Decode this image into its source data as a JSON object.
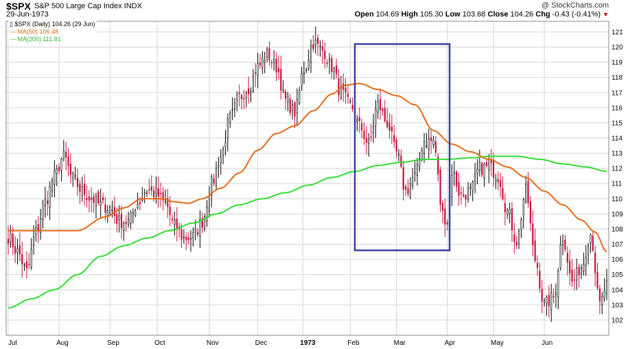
{
  "header": {
    "symbol": "$SPX",
    "name": "S&P 500 Large Cap Index  INDX",
    "date": "29-Jun-1973",
    "brand": "@ StockCharts.com",
    "open_label": "Open",
    "open": "104.69",
    "high_label": "High",
    "high": "105.30",
    "low_label": "Low",
    "low": "103.68",
    "close_label": "Close",
    "close": "104.26",
    "chg_label": "Chg",
    "chg": "-0.43 (-0.41%)",
    "down_glyph": "▼"
  },
  "legend": {
    "price": "$SPX (Daily) 104.26 (29 Jun)",
    "ma50": "MA(50) 106.48",
    "ma200": "MA(200) 111.81"
  },
  "colors": {
    "up": "#000000",
    "down": "#c8103c",
    "ma50": "#e46a16",
    "ma200": "#30dd30",
    "grid": "#d4d4d4",
    "box": "#3a3fa0"
  },
  "chart_data": {
    "type": "candlestick",
    "y_axis": {
      "side": "right",
      "range": [
        101,
        121.7
      ],
      "ticks": [
        102,
        103,
        104,
        105,
        106,
        107,
        108,
        109,
        110,
        111,
        112,
        113,
        114,
        115,
        116,
        117,
        118,
        119,
        120,
        121
      ]
    },
    "x_tick_labels": [
      "Jul",
      "Aug",
      "Sep",
      "Oct",
      "Nov",
      "Dec",
      "1973",
      "Feb",
      "Mar",
      "Apr",
      "May",
      "Jun"
    ],
    "x_tick_bold": [
      false,
      false,
      false,
      false,
      false,
      false,
      true,
      false,
      false,
      false,
      false,
      false
    ],
    "x_tick_pos": [
      0,
      22,
      44,
      64.5,
      87,
      108,
      127.5,
      148,
      168,
      190,
      210,
      232
    ],
    "close_anchors": [
      [
        0,
        107.5
      ],
      [
        4,
        106.5
      ],
      [
        8,
        105.2
      ],
      [
        12,
        107.8
      ],
      [
        16,
        109.8
      ],
      [
        20,
        111.5
      ],
      [
        24,
        112.8
      ],
      [
        28,
        111.3
      ],
      [
        32,
        110.5
      ],
      [
        36,
        110.0
      ],
      [
        40,
        109.6
      ],
      [
        44,
        109.4
      ],
      [
        48,
        108.5
      ],
      [
        52,
        108.5
      ],
      [
        56,
        109.7
      ],
      [
        60,
        110.6
      ],
      [
        64,
        110.3
      ],
      [
        68,
        109.7
      ],
      [
        72,
        108.2
      ],
      [
        76,
        107.4
      ],
      [
        80,
        107.5
      ],
      [
        84,
        108.5
      ],
      [
        88,
        111.0
      ],
      [
        92,
        112.8
      ],
      [
        96,
        115.3
      ],
      [
        100,
        116.7
      ],
      [
        104,
        117.3
      ],
      [
        108,
        118.7
      ],
      [
        112,
        119.5
      ],
      [
        116,
        118.7
      ],
      [
        120,
        116.5
      ],
      [
        124,
        115.7
      ],
      [
        128,
        118.5
      ],
      [
        132,
        120.3
      ],
      [
        136,
        119.8
      ],
      [
        140,
        118.7
      ],
      [
        144,
        117.0
      ],
      [
        148,
        116.2
      ],
      [
        152,
        114.8
      ],
      [
        156,
        113.6
      ],
      [
        160,
        116.2
      ],
      [
        164,
        115.0
      ],
      [
        168,
        113.0
      ],
      [
        172,
        110.5
      ],
      [
        176,
        111.5
      ],
      [
        180,
        113.8
      ],
      [
        184,
        113.8
      ],
      [
        188,
        109.0
      ],
      [
        190,
        108.5
      ],
      [
        192,
        111.8
      ],
      [
        196,
        110.2
      ],
      [
        200,
        110.5
      ],
      [
        204,
        112.0
      ],
      [
        208,
        112.1
      ],
      [
        212,
        111.5
      ],
      [
        216,
        109.2
      ],
      [
        220,
        107.2
      ],
      [
        224,
        110.5
      ],
      [
        228,
        106.0
      ],
      [
        232,
        103.0
      ],
      [
        236,
        103.5
      ],
      [
        240,
        107.5
      ],
      [
        244,
        104.5
      ],
      [
        248,
        105.5
      ],
      [
        252,
        107.7
      ],
      [
        256,
        103.0
      ],
      [
        259,
        104.3
      ]
    ],
    "ma50_anchors": [
      [
        0,
        107.9
      ],
      [
        20,
        107.9
      ],
      [
        30,
        107.9
      ],
      [
        42,
        108.8
      ],
      [
        50,
        109.4
      ],
      [
        58,
        110.0
      ],
      [
        66,
        110.0
      ],
      [
        72,
        109.8
      ],
      [
        78,
        109.7
      ],
      [
        84,
        110.0
      ],
      [
        92,
        110.7
      ],
      [
        100,
        111.7
      ],
      [
        108,
        113.2
      ],
      [
        116,
        114.3
      ],
      [
        124,
        114.8
      ],
      [
        132,
        115.8
      ],
      [
        140,
        116.9
      ],
      [
        146,
        117.5
      ],
      [
        152,
        117.6
      ],
      [
        160,
        117.2
      ],
      [
        168,
        116.8
      ],
      [
        176,
        116.2
      ],
      [
        184,
        114.5
      ],
      [
        192,
        113.6
      ],
      [
        200,
        113.1
      ],
      [
        208,
        112.6
      ],
      [
        216,
        112.1
      ],
      [
        224,
        111.4
      ],
      [
        232,
        110.5
      ],
      [
        240,
        109.6
      ],
      [
        248,
        108.6
      ],
      [
        254,
        107.8
      ],
      [
        259,
        106.5
      ]
    ],
    "ma200_anchors": [
      [
        0,
        102.8
      ],
      [
        10,
        103.4
      ],
      [
        20,
        104.0
      ],
      [
        30,
        105.0
      ],
      [
        40,
        106.2
      ],
      [
        50,
        106.9
      ],
      [
        60,
        107.4
      ],
      [
        70,
        107.9
      ],
      [
        80,
        108.4
      ],
      [
        90,
        109.0
      ],
      [
        100,
        109.6
      ],
      [
        110,
        110.0
      ],
      [
        120,
        110.4
      ],
      [
        130,
        110.9
      ],
      [
        140,
        111.4
      ],
      [
        150,
        111.8
      ],
      [
        160,
        112.2
      ],
      [
        170,
        112.4
      ],
      [
        180,
        112.6
      ],
      [
        190,
        112.6
      ],
      [
        200,
        112.7
      ],
      [
        210,
        112.8
      ],
      [
        220,
        112.8
      ],
      [
        230,
        112.6
      ],
      [
        240,
        112.3
      ],
      [
        250,
        112.1
      ],
      [
        259,
        111.8
      ]
    ],
    "highlight_box": {
      "x_start": 150,
      "x_end": 191,
      "y_low": 106.6,
      "y_high": 120.2
    }
  }
}
